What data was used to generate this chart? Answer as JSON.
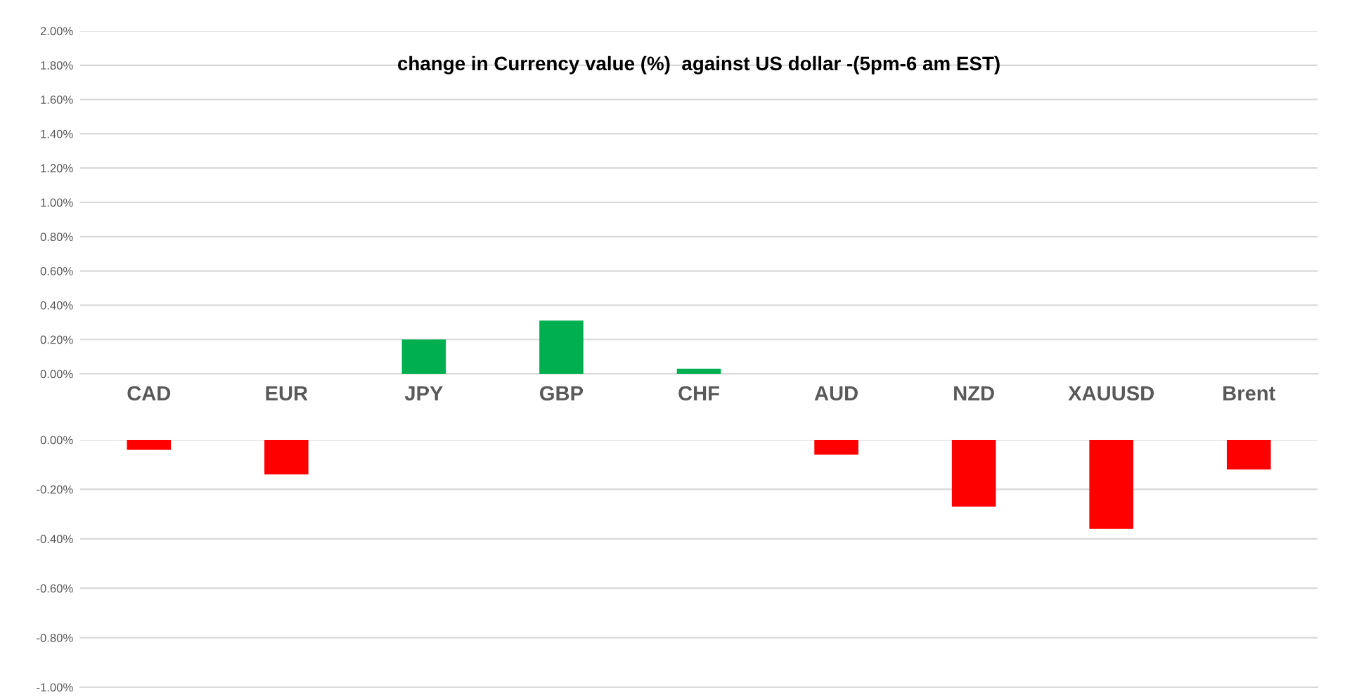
{
  "chart_data": [
    {
      "type": "bar",
      "title": "change in Currency value (%)  against US dollar -(5pm-6 am EST)",
      "categories": [
        "CAD",
        "EUR",
        "JPY",
        "GBP",
        "CHF",
        "AUD",
        "NZD",
        "XAUUSD",
        "Brent"
      ],
      "values": [
        null,
        null,
        0.2,
        0.31,
        0.03,
        null,
        null,
        null,
        null
      ],
      "color": "#00b050",
      "ylim": [
        0,
        2
      ],
      "yticks": [
        {
          "value": 0,
          "label": "0.00%"
        },
        {
          "value": 0.2,
          "label": "0.20%"
        },
        {
          "value": 0.4,
          "label": "0.40%"
        },
        {
          "value": 0.6,
          "label": "0.60%"
        },
        {
          "value": 0.8,
          "label": "0.80%"
        },
        {
          "value": 1.0,
          "label": "1.00%"
        },
        {
          "value": 1.2,
          "label": "1.20%"
        },
        {
          "value": 1.4,
          "label": "1.40%"
        },
        {
          "value": 1.6,
          "label": "1.60%"
        },
        {
          "value": 1.8,
          "label": "1.80%"
        },
        {
          "value": 2.0,
          "label": "2.00%"
        }
      ],
      "grid": "y"
    },
    {
      "type": "bar",
      "categories": [
        null,
        null,
        null,
        null,
        null,
        null,
        null,
        null,
        null
      ],
      "values": [
        -0.04,
        -0.14,
        null,
        null,
        null,
        -0.06,
        -0.27,
        -0.36,
        -0.12
      ],
      "color": "#ff0000",
      "ylim": [
        -1,
        0
      ],
      "yticks": [
        {
          "value": 0,
          "label": "0.00%"
        },
        {
          "value": -0.2,
          "label": "-0.20%"
        },
        {
          "value": -0.4,
          "label": "-0.40%"
        },
        {
          "value": -0.6,
          "label": "-0.60%"
        },
        {
          "value": -0.8,
          "label": "-0.80%"
        },
        {
          "value": -1.0,
          "label": "-1.00%"
        }
      ],
      "grid": "y",
      "tick_labels": "y"
    }
  ]
}
